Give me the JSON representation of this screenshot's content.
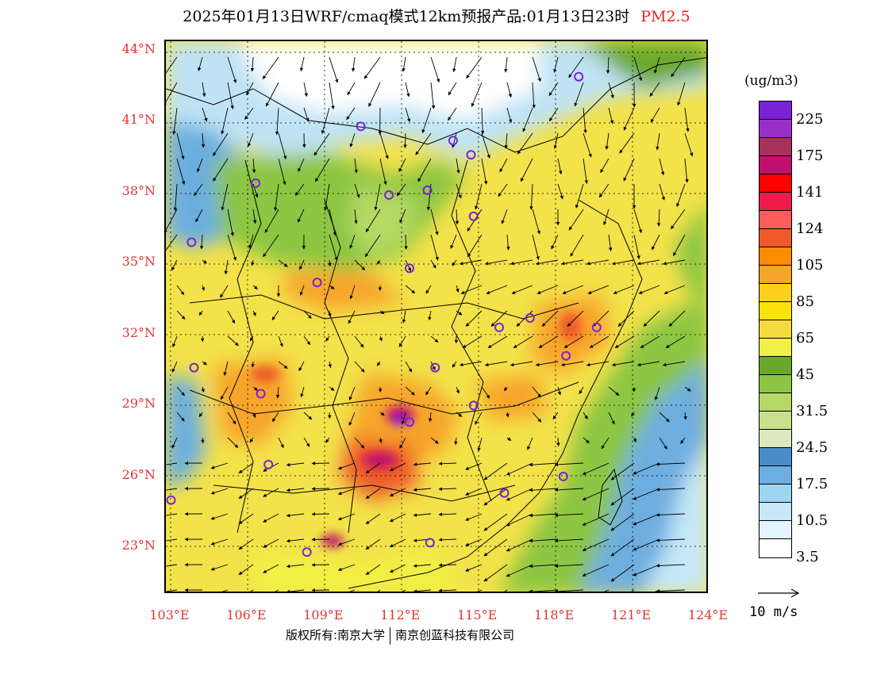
{
  "title": {
    "main": "2025年01月13日WRF/cmaq模式12km预报产品:01月13日23时",
    "variable": "PM2.5"
  },
  "map": {
    "lat_labels": [
      "44°N",
      "41°N",
      "38°N",
      "35°N",
      "32°N",
      "29°N",
      "26°N",
      "23°N"
    ],
    "lon_labels": [
      "103°E",
      "106°E",
      "109°E",
      "112°E",
      "115°E",
      "118°E",
      "121°E",
      "124°E"
    ],
    "extent": {
      "lon_min": 102.8,
      "lon_max": 124.0,
      "lat_min": 21.0,
      "lat_max": 44.4
    }
  },
  "legend": {
    "units": "(ug/m3)",
    "levels": [
      "225",
      "175",
      "141",
      "124",
      "105",
      "85",
      "65",
      "45",
      "31.5",
      "24.5",
      "17.5",
      "10.5",
      "3.5"
    ],
    "colors": [
      "#7a22d8",
      "#9a2fc8",
      "#a8305c",
      "#c0106e",
      "#ff0000",
      "#ee1a4a",
      "#ff5c5c",
      "#ef5a2a",
      "#ff8c00",
      "#f7a52a",
      "#fdd020",
      "#fbe20a",
      "#f5dc3e",
      "#f1f044",
      "#6aa82a",
      "#8cc642",
      "#b5d964",
      "#c9e08c",
      "#dde9bc",
      "#4a8cc8",
      "#6eaee0",
      "#9ed6f2",
      "#c6e8f8",
      "#e3f4fc",
      "#ffffff"
    ]
  },
  "wind": {
    "reference_label": "10 m/s"
  },
  "stations": [
    {
      "lon": 118.9,
      "lat": 42.9
    },
    {
      "lon": 110.4,
      "lat": 40.8
    },
    {
      "lon": 114.0,
      "lat": 40.2
    },
    {
      "lon": 114.7,
      "lat": 39.6
    },
    {
      "lon": 106.3,
      "lat": 38.4
    },
    {
      "lon": 111.5,
      "lat": 37.9
    },
    {
      "lon": 113.0,
      "lat": 38.1
    },
    {
      "lon": 114.8,
      "lat": 37.0
    },
    {
      "lon": 103.8,
      "lat": 35.9
    },
    {
      "lon": 112.3,
      "lat": 34.8
    },
    {
      "lon": 108.7,
      "lat": 34.2
    },
    {
      "lon": 117.0,
      "lat": 32.7
    },
    {
      "lon": 115.8,
      "lat": 32.3
    },
    {
      "lon": 119.6,
      "lat": 32.3
    },
    {
      "lon": 103.9,
      "lat": 30.6
    },
    {
      "lon": 113.3,
      "lat": 30.6
    },
    {
      "lon": 118.4,
      "lat": 31.1
    },
    {
      "lon": 106.5,
      "lat": 29.5
    },
    {
      "lon": 114.8,
      "lat": 29.0
    },
    {
      "lon": 112.3,
      "lat": 28.3
    },
    {
      "lon": 106.8,
      "lat": 26.5
    },
    {
      "lon": 118.3,
      "lat": 26.0
    },
    {
      "lon": 103.0,
      "lat": 25.0
    },
    {
      "lon": 108.3,
      "lat": 22.8
    },
    {
      "lon": 113.1,
      "lat": 23.2
    },
    {
      "lon": 116.0,
      "lat": 25.3
    }
  ],
  "copyright": {
    "left": "版权所有:南京大学",
    "right": "南京创蓝科技有限公司"
  }
}
